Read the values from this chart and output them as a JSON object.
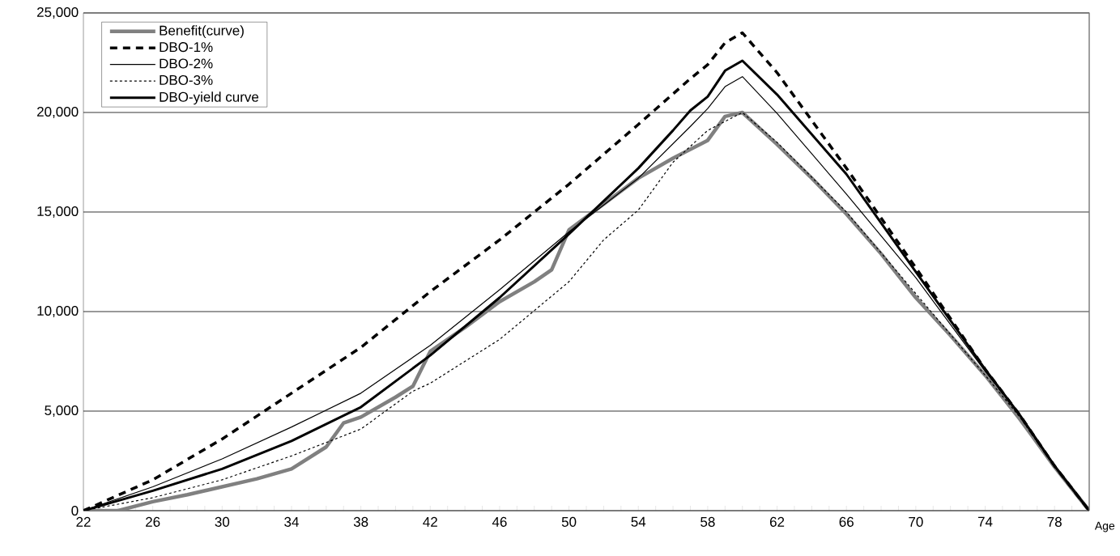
{
  "chart_data": {
    "type": "line",
    "xlabel": "Age",
    "xlim": [
      22,
      80
    ],
    "ylim": [
      0,
      25000
    ],
    "xticks": [
      22,
      {
        "value": 23,
        "label": null
      },
      {
        "value": 24,
        "label": null
      },
      {
        "value": 25,
        "label": null
      },
      26,
      {
        "value": 27,
        "label": null
      },
      {
        "value": 28,
        "label": null
      },
      {
        "value": 29,
        "label": null
      },
      30,
      {
        "value": 31,
        "label": null
      },
      {
        "value": 32,
        "label": null
      },
      {
        "value": 33,
        "label": null
      },
      34,
      {
        "value": 35,
        "label": null
      },
      {
        "value": 36,
        "label": null
      },
      {
        "value": 37,
        "label": null
      },
      38,
      {
        "value": 39,
        "label": null
      },
      {
        "value": 40,
        "label": null
      },
      {
        "value": 41,
        "label": null
      },
      42,
      {
        "value": 43,
        "label": null
      },
      {
        "value": 44,
        "label": null
      },
      {
        "value": 45,
        "label": null
      },
      46,
      {
        "value": 47,
        "label": null
      },
      {
        "value": 48,
        "label": null
      },
      {
        "value": 49,
        "label": null
      },
      50,
      {
        "value": 51,
        "label": null
      },
      {
        "value": 52,
        "label": null
      },
      {
        "value": 53,
        "label": null
      },
      54,
      {
        "value": 55,
        "label": null
      },
      {
        "value": 56,
        "label": null
      },
      {
        "value": 57,
        "label": null
      },
      58,
      {
        "value": 59,
        "label": null
      },
      {
        "value": 60,
        "label": null
      },
      {
        "value": 61,
        "label": null
      },
      62,
      {
        "value": 63,
        "label": null
      },
      {
        "value": 64,
        "label": null
      },
      {
        "value": 65,
        "label": null
      },
      66,
      {
        "value": 67,
        "label": null
      },
      {
        "value": 68,
        "label": null
      },
      {
        "value": 69,
        "label": null
      },
      70,
      {
        "value": 71,
        "label": null
      },
      {
        "value": 72,
        "label": null
      },
      {
        "value": 73,
        "label": null
      },
      74,
      {
        "value": 75,
        "label": null
      },
      {
        "value": 76,
        "label": null
      },
      {
        "value": 77,
        "label": null
      },
      78,
      {
        "value": 79,
        "label": null
      },
      {
        "value": 80,
        "label": null
      }
    ],
    "yticks": [
      0,
      {
        "value": 5000,
        "label": "5,000"
      },
      {
        "value": 10000,
        "label": "10,000"
      },
      {
        "value": 15000,
        "label": "15,000"
      },
      {
        "value": 20000,
        "label": "20,000"
      },
      {
        "value": 25000,
        "label": "25,000"
      }
    ],
    "grid": "y",
    "legend": "top left",
    "marker": "none",
    "series": [
      {
        "name": "Benefit(curve)",
        "color": "#808080",
        "line_style": "solid",
        "x": [
          22,
          24,
          26,
          28,
          30,
          32,
          34,
          36,
          37,
          38,
          40,
          41,
          42,
          44,
          46,
          48,
          49,
          50,
          52,
          54,
          56,
          58,
          59,
          60,
          62,
          64,
          66,
          68,
          70,
          72,
          74,
          76,
          78,
          80
        ],
        "values": [
          0,
          0,
          450,
          800,
          1200,
          1600,
          2100,
          3200,
          4400,
          4700,
          5700,
          6250,
          8000,
          9200,
          10500,
          11500,
          12100,
          14100,
          15400,
          16700,
          17700,
          18600,
          19800,
          20000,
          18400,
          16700,
          14900,
          12900,
          10700,
          8800,
          6800,
          4600,
          2200,
          0
        ]
      },
      {
        "name": "DBO-1%",
        "color": "#000000",
        "line_style": "dashed",
        "x": [
          22,
          26,
          30,
          34,
          38,
          42,
          46,
          50,
          54,
          57,
          58,
          59,
          60,
          62,
          66,
          70,
          74,
          76,
          78,
          80
        ],
        "values": [
          0,
          1550,
          3600,
          5900,
          8200,
          11000,
          13600,
          16400,
          19400,
          21700,
          22400,
          23500,
          24000,
          22000,
          17200,
          12200,
          7100,
          4800,
          2250,
          0
        ]
      },
      {
        "name": "DBO-2%",
        "color": "#000000",
        "line_style": "solid",
        "x": [
          22,
          26,
          30,
          34,
          38,
          42,
          46,
          50,
          54,
          57,
          58,
          59,
          60,
          62,
          66,
          70,
          74,
          76,
          78,
          80
        ],
        "values": [
          0,
          1200,
          2600,
          4200,
          5900,
          8300,
          11100,
          14000,
          16700,
          19300,
          20200,
          21300,
          21800,
          19950,
          15900,
          11700,
          7000,
          4800,
          2250,
          0
        ]
      },
      {
        "name": "DBO-3%",
        "color": "#000000",
        "line_style": "dotted",
        "x": [
          22,
          26,
          30,
          34,
          38,
          41,
          42,
          46,
          50,
          52,
          54,
          56,
          58,
          60,
          62,
          66,
          70,
          74,
          76,
          78,
          80
        ],
        "values": [
          0,
          650,
          1550,
          2750,
          4100,
          6000,
          6400,
          8600,
          11500,
          13600,
          15100,
          17500,
          19100,
          20000,
          18500,
          15000,
          10900,
          6800,
          4700,
          2200,
          0
        ]
      },
      {
        "name": "DBO-yield curve",
        "color": "#000000",
        "line_style": "solid",
        "x": [
          22,
          26,
          30,
          34,
          38,
          42,
          46,
          50,
          54,
          56,
          57,
          58,
          59,
          60,
          62,
          66,
          70,
          74,
          76,
          78,
          80
        ],
        "values": [
          0,
          1000,
          2100,
          3500,
          5200,
          7800,
          10700,
          13900,
          17200,
          19100,
          20100,
          20800,
          22100,
          22600,
          20900,
          16900,
          12000,
          7100,
          4800,
          2250,
          0
        ]
      }
    ]
  }
}
